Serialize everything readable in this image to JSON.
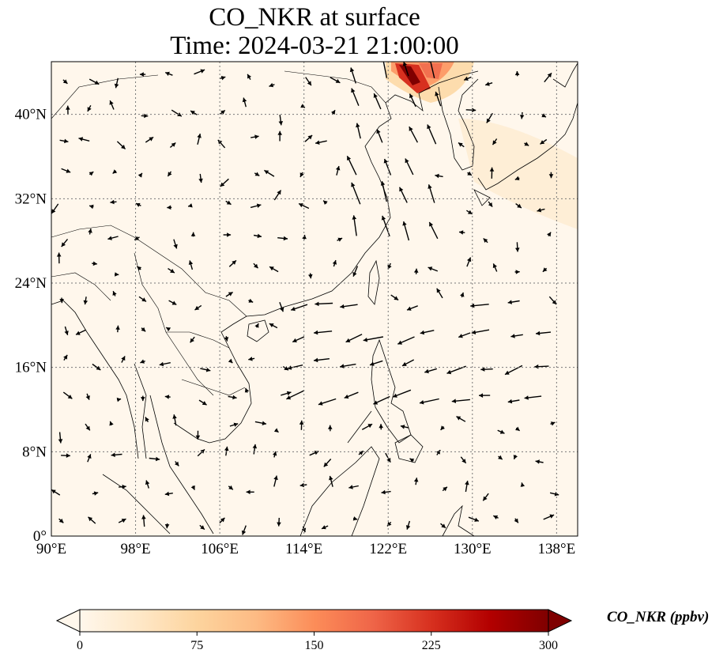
{
  "title": {
    "line1": "CO_NKR at surface",
    "line2": "Time: 2024-03-21 21:00:00"
  },
  "map": {
    "lon_range": [
      90,
      140
    ],
    "lat_range": [
      0,
      45
    ],
    "lon_ticks": [
      {
        "value": 90,
        "label": "90°E"
      },
      {
        "value": 98,
        "label": "98°E"
      },
      {
        "value": 106,
        "label": "106°E"
      },
      {
        "value": 114,
        "label": "114°E"
      },
      {
        "value": 122,
        "label": "122°E"
      },
      {
        "value": 130,
        "label": "130°E"
      },
      {
        "value": 138,
        "label": "138°E"
      }
    ],
    "lat_ticks": [
      {
        "value": 0,
        "label": "0°"
      },
      {
        "value": 8,
        "label": "8°N"
      },
      {
        "value": 16,
        "label": "16°N"
      },
      {
        "value": 24,
        "label": "24°N"
      },
      {
        "value": 32,
        "label": "32°N"
      },
      {
        "value": 40,
        "label": "40°N"
      }
    ],
    "grid": true,
    "background_color": "#fff7ec",
    "land_line_color": "#000000"
  },
  "colorbar": {
    "label": "CO_NKR (ppbv)",
    "ticks": [
      "0",
      "75",
      "150",
      "225",
      "300"
    ],
    "range": [
      0,
      300
    ],
    "extend": "both",
    "colors": [
      "#fff7ec",
      "#fee8c8",
      "#fdd49e",
      "#fdbb84",
      "#fc8d59",
      "#ef6548",
      "#d7301f",
      "#b30000",
      "#7f0000"
    ]
  }
}
